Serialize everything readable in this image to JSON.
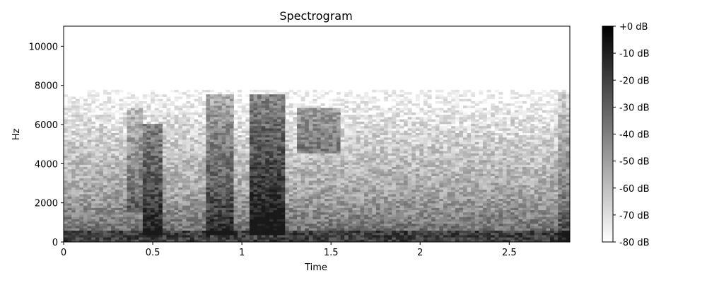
{
  "chart_data": {
    "type": "heatmap",
    "title": "Spectrogram",
    "xlabel": "Time",
    "ylabel": "Hz",
    "xlim": [
      0,
      2.84
    ],
    "ylim": [
      0,
      11025
    ],
    "x_ticks": [
      "0",
      "0.5",
      "1",
      "1.5",
      "2",
      "2.5"
    ],
    "x_tick_values": [
      0,
      0.5,
      1,
      1.5,
      2,
      2.5
    ],
    "y_ticks": [
      "0",
      "2000",
      "4000",
      "6000",
      "8000",
      "10000"
    ],
    "y_tick_values": [
      0,
      2000,
      4000,
      6000,
      8000,
      10000
    ],
    "colorbar": {
      "range_db": [
        -80,
        0
      ],
      "ticks": [
        "+0 dB",
        "-10 dB",
        "-20 dB",
        "-30 dB",
        "-40 dB",
        "-50 dB",
        "-60 dB",
        "-70 dB",
        "-80 dB"
      ],
      "tick_values": [
        0,
        -10,
        -20,
        -30,
        -40,
        -50,
        -60,
        -70,
        -80
      ],
      "colormap": "gray_r"
    },
    "colors": {
      "low": "#ffffff",
      "high": "#000000"
    }
  }
}
